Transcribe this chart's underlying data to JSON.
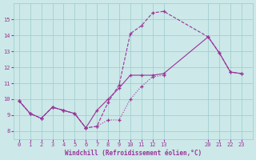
{
  "background_color": "#cce8e8",
  "grid_color": "#99cccc",
  "line_color": "#993399",
  "xlabel": "Windchill (Refroidissement éolien,°C)",
  "xlim": [
    -0.5,
    23.5
  ],
  "ylim": [
    7.5,
    16.0
  ],
  "yticks": [
    8,
    9,
    10,
    11,
    12,
    13,
    14,
    15
  ],
  "xtick_labels": [
    "0",
    "1",
    "2",
    "3",
    "4",
    "5",
    "6",
    "7",
    "8",
    "9",
    "10",
    "11",
    "12",
    "13",
    "20",
    "21",
    "22",
    "23"
  ],
  "xtick_positions": [
    0,
    1,
    2,
    3,
    4,
    5,
    6,
    7,
    8,
    9,
    10,
    11,
    12,
    13,
    17,
    18,
    19,
    20
  ],
  "x_gap_start": 13.5,
  "x_gap_end": 16.5,
  "line1_x": [
    0,
    1,
    2,
    3,
    4,
    5,
    6,
    7,
    8,
    9,
    10,
    11,
    12,
    13,
    17,
    18,
    19,
    20
  ],
  "line1_y": [
    9.9,
    9.1,
    8.8,
    9.5,
    9.3,
    9.1,
    8.2,
    8.3,
    8.7,
    8.7,
    10.0,
    10.8,
    11.4,
    11.5,
    13.9,
    12.9,
    11.7,
    11.6
  ],
  "line2_x": [
    0,
    1,
    2,
    3,
    4,
    5,
    6,
    7,
    8,
    9,
    10,
    11,
    12,
    13,
    17,
    18,
    19,
    20
  ],
  "line2_y": [
    9.9,
    9.1,
    8.8,
    9.5,
    9.3,
    9.1,
    8.2,
    8.3,
    9.8,
    10.9,
    14.1,
    14.6,
    15.4,
    15.5,
    13.9,
    12.9,
    11.7,
    11.6
  ],
  "line3_x": [
    0,
    1,
    2,
    3,
    4,
    5,
    6,
    7,
    8,
    9,
    10,
    11,
    12,
    13,
    17,
    18,
    19,
    20
  ],
  "line3_y": [
    9.9,
    9.1,
    8.8,
    9.5,
    9.3,
    9.1,
    8.2,
    9.3,
    10.0,
    10.7,
    11.5,
    11.5,
    11.5,
    11.6,
    13.9,
    12.9,
    11.7,
    11.6
  ]
}
